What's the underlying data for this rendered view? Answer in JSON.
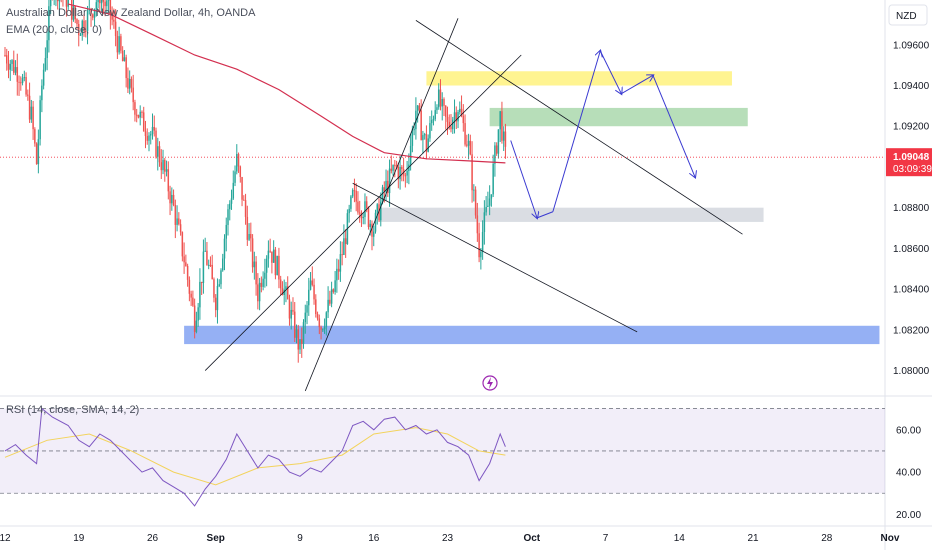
{
  "header": {
    "symbol_title": "Australian Dollar / New Zealand Dollar, 4h, OANDA",
    "ema_label": "EMA (200, close, 0)",
    "rsi_label": "RSI (14, close, SMA, 14, 2)",
    "currency": "NZD"
  },
  "last_price": {
    "value": "1.09048",
    "countdown": "03:09:39",
    "color": "#f23645"
  },
  "chart_data": {
    "type": "candlestick",
    "y_ticks": [
      "1.09600",
      "1.09400",
      "1.09200",
      "1.09000",
      "1.08800",
      "1.08600",
      "1.08400",
      "1.08200",
      "1.08000"
    ],
    "ylim": [
      1.0788,
      1.0982
    ],
    "rsi_ticks": [
      "60.00",
      "40.00",
      "20.00"
    ],
    "rsi_lim": [
      15,
      75
    ],
    "rsi_bands": [
      70,
      50,
      30
    ],
    "x_ticks": [
      "12",
      "19",
      "26",
      "Sep",
      "9",
      "16",
      "23",
      "Oct",
      "7",
      "14",
      "21",
      "28",
      "Nov"
    ],
    "x_domain": [
      0,
      84
    ],
    "x_tick_days": [
      0,
      7,
      14,
      20,
      28,
      35,
      42,
      50,
      57,
      64,
      71,
      78,
      84
    ],
    "price_path": [
      [
        0,
        1.0955
      ],
      [
        1.5,
        1.0945
      ],
      [
        2.5,
        1.0925
      ],
      [
        3,
        1.0902
      ],
      [
        3.5,
        1.094
      ],
      [
        4.5,
        1.099
      ],
      [
        6,
        1.0982
      ],
      [
        7,
        1.0968
      ],
      [
        8,
        1.0975
      ],
      [
        9,
        1.0985
      ],
      [
        10,
        1.0975
      ],
      [
        11,
        1.0955
      ],
      [
        12,
        1.0935
      ],
      [
        13,
        1.0922
      ],
      [
        14,
        1.0915
      ],
      [
        15,
        1.09
      ],
      [
        16,
        1.088
      ],
      [
        17,
        1.0855
      ],
      [
        18,
        1.0825
      ],
      [
        19,
        1.0858
      ],
      [
        20,
        1.0835
      ],
      [
        21,
        1.0872
      ],
      [
        22,
        1.0903
      ],
      [
        23,
        1.087
      ],
      [
        24,
        1.0838
      ],
      [
        25,
        1.0862
      ],
      [
        26,
        1.0848
      ],
      [
        27,
        1.083
      ],
      [
        28,
        1.081
      ],
      [
        29,
        1.0842
      ],
      [
        30,
        1.0822
      ],
      [
        31,
        1.0835
      ],
      [
        32,
        1.0858
      ],
      [
        33,
        1.0885
      ],
      [
        34,
        1.088
      ],
      [
        35,
        1.087
      ],
      [
        36,
        1.0888
      ],
      [
        37,
        1.09
      ],
      [
        38,
        1.0895
      ],
      [
        39,
        1.0928
      ],
      [
        40,
        1.091
      ],
      [
        41,
        1.0935
      ],
      [
        42,
        1.092
      ],
      [
        43,
        1.093
      ],
      [
        44,
        1.091
      ],
      [
        45,
        1.086
      ],
      [
        46,
        1.0885
      ],
      [
        47,
        1.0925
      ],
      [
        47.5,
        1.0905
      ]
    ],
    "ema_path": [
      [
        6,
        1.098
      ],
      [
        10,
        1.0975
      ],
      [
        14,
        1.0965
      ],
      [
        18,
        1.0955
      ],
      [
        22,
        1.0948
      ],
      [
        26,
        1.0938
      ],
      [
        30,
        1.0925
      ],
      [
        33,
        1.0915
      ],
      [
        36,
        1.0907
      ],
      [
        40,
        1.0904
      ],
      [
        44,
        1.0903
      ],
      [
        47.5,
        1.0902
      ]
    ],
    "rsi_path": [
      [
        0,
        50
      ],
      [
        1,
        53
      ],
      [
        2,
        48
      ],
      [
        3,
        44
      ],
      [
        3.5,
        70
      ],
      [
        4.5,
        66
      ],
      [
        6,
        62
      ],
      [
        7,
        55
      ],
      [
        8,
        52
      ],
      [
        9,
        58
      ],
      [
        10,
        55
      ],
      [
        11,
        50
      ],
      [
        12,
        45
      ],
      [
        13,
        40
      ],
      [
        14,
        42
      ],
      [
        15,
        36
      ],
      [
        16,
        33
      ],
      [
        17,
        30
      ],
      [
        18,
        24
      ],
      [
        19,
        32
      ],
      [
        20,
        38
      ],
      [
        21,
        46
      ],
      [
        22,
        58
      ],
      [
        23,
        50
      ],
      [
        24,
        42
      ],
      [
        25,
        48
      ],
      [
        26,
        46
      ],
      [
        27,
        40
      ],
      [
        28,
        38
      ],
      [
        29,
        42
      ],
      [
        30,
        40
      ],
      [
        31,
        45
      ],
      [
        32,
        50
      ],
      [
        33,
        62
      ],
      [
        34,
        64
      ],
      [
        35,
        60
      ],
      [
        36,
        65
      ],
      [
        37,
        66
      ],
      [
        38,
        60
      ],
      [
        39,
        62
      ],
      [
        40,
        58
      ],
      [
        41,
        60
      ],
      [
        42,
        54
      ],
      [
        43,
        52
      ],
      [
        44,
        48
      ],
      [
        45,
        36
      ],
      [
        46,
        44
      ],
      [
        47,
        58
      ],
      [
        47.5,
        52
      ]
    ],
    "rsi_ma_path": [
      [
        0,
        47
      ],
      [
        4,
        55
      ],
      [
        8,
        58
      ],
      [
        12,
        50
      ],
      [
        16,
        40
      ],
      [
        20,
        34
      ],
      [
        24,
        42
      ],
      [
        28,
        44
      ],
      [
        32,
        48
      ],
      [
        35,
        58
      ],
      [
        39,
        61
      ],
      [
        42,
        58
      ],
      [
        45,
        50
      ],
      [
        47.5,
        48
      ]
    ],
    "zones": [
      {
        "name": "yellow-zone",
        "x0": 40,
        "x1": 69,
        "y0": 1.094,
        "y1": 1.0947,
        "color": "#fff176"
      },
      {
        "name": "green-zone",
        "x0": 46,
        "x1": 70.5,
        "y0": 1.092,
        "y1": 1.0929,
        "color": "#a5d6a7"
      },
      {
        "name": "gray-zone",
        "x0": 35.5,
        "x1": 72,
        "y0": 1.0873,
        "y1": 1.088,
        "color": "#d1d4dc"
      },
      {
        "name": "blue-zone",
        "x0": 17,
        "x1": 83,
        "y0": 1.0813,
        "y1": 1.0822,
        "color": "#7b9cf1"
      }
    ],
    "trendlines": [
      {
        "name": "channel-lower",
        "x0": 19,
        "y0": 1.08,
        "x1": 49,
        "y1": 1.0955,
        "color": "#131722"
      },
      {
        "name": "channel-upper",
        "x0": 28.5,
        "y0": 1.079,
        "x1": 43,
        "y1": 1.0973,
        "color": "#131722"
      },
      {
        "name": "resistance-line",
        "x0": 39,
        "y0": 1.0972,
        "x1": 70,
        "y1": 1.0867,
        "color": "#131722"
      },
      {
        "name": "support-line",
        "x0": 33,
        "y0": 1.0892,
        "x1": 60,
        "y1": 1.0819,
        "color": "#131722"
      }
    ],
    "projection": [
      [
        48,
        1.0913
      ],
      [
        50.5,
        1.0875
      ],
      [
        52,
        1.0878
      ],
      [
        56.5,
        1.0957
      ],
      [
        58.5,
        1.0936
      ],
      [
        61.5,
        1.0945
      ],
      [
        65.5,
        1.0895
      ]
    ],
    "projection_color": "#3a3ad1"
  }
}
